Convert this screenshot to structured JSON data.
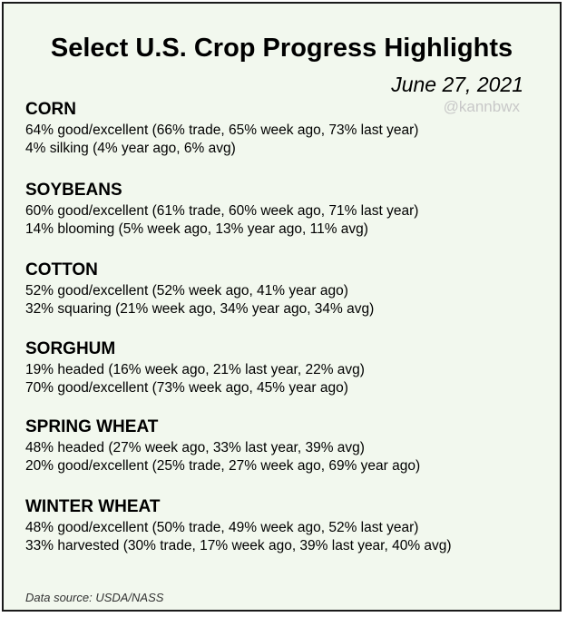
{
  "title": "Select U.S. Crop Progress Highlights",
  "date": "June 27, 2021",
  "handle": "@kannbwx",
  "crops": [
    {
      "name": "CORN",
      "lines": [
        "64% good/excellent (66% trade, 65% week ago, 73% last year)",
        "4% silking (4% year ago, 6% avg)"
      ]
    },
    {
      "name": "SOYBEANS",
      "lines": [
        "60% good/excellent (61% trade, 60% week ago, 71% last year)",
        "14% blooming (5% week ago, 13% year ago, 11% avg)"
      ]
    },
    {
      "name": "COTTON",
      "lines": [
        "52% good/excellent (52% week ago, 41% year ago)",
        "32% squaring (21% week ago, 34% year ago, 34% avg)"
      ]
    },
    {
      "name": "SORGHUM",
      "lines": [
        "19% headed (16% week ago, 21% last year, 22% avg)",
        "70% good/excellent (73% week ago, 45% year ago)"
      ]
    },
    {
      "name": "SPRING WHEAT",
      "lines": [
        "48% headed (27% week ago, 33% last year, 39% avg)",
        "20% good/excellent (25% trade, 27% week ago, 69% year ago)"
      ]
    },
    {
      "name": "WINTER WHEAT",
      "lines": [
        "48% good/excellent (50% trade, 49% week ago, 52% last year)",
        "33% harvested (30% trade, 17% week ago, 39% last year, 40% avg)"
      ]
    }
  ],
  "source": "Data source: USDA/NASS",
  "colors": {
    "background": "#f2f8ee",
    "border": "#1a1a1a",
    "handle": "#c8c8c8"
  }
}
